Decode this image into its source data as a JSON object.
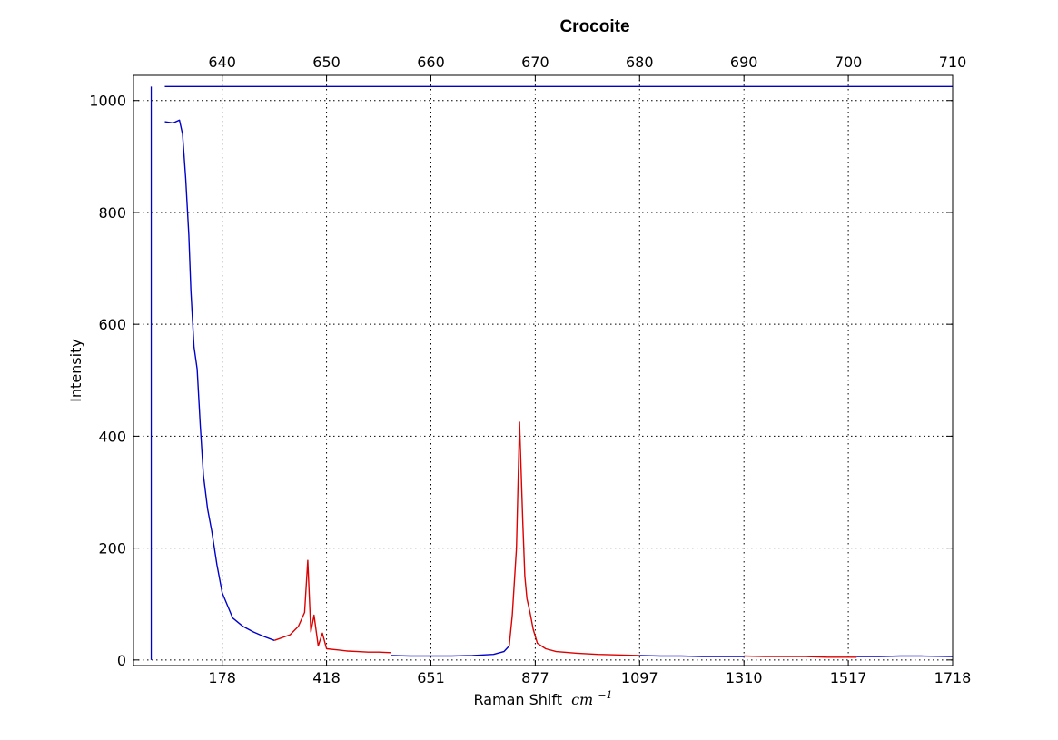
{
  "chart_data": {
    "type": "line",
    "title": "Crocoite",
    "xlabel": "Raman Shift",
    "xlabel_unit": "cm",
    "xlabel_unit_exponent": "−1",
    "ylabel": "Intensity",
    "xlim": [
      631.5,
      710
    ],
    "ylim": [
      -10,
      1045
    ],
    "grid": true,
    "top_ticks": [
      "640",
      "650",
      "660",
      "670",
      "680",
      "690",
      "700",
      "710"
    ],
    "top_tick_values": [
      640,
      650,
      660,
      670,
      680,
      690,
      700,
      710
    ],
    "bottom_ticks": [
      "178",
      "418",
      "651",
      "877",
      "1097",
      "1310",
      "1517",
      "1718"
    ],
    "bottom_tick_values": [
      640,
      650,
      660,
      670,
      680,
      690,
      700,
      710
    ],
    "y_ticks": [
      "0",
      "200",
      "400",
      "600",
      "800",
      "1000"
    ],
    "y_tick_values": [
      0,
      200,
      400,
      600,
      800,
      1000
    ],
    "colors": {
      "blue": "#0000cc",
      "red": "#dd0000"
    },
    "markers": [
      {
        "type": "vline",
        "x": 633.2,
        "y_from": 0,
        "y_to": 1025,
        "color": "#0000cc"
      },
      {
        "type": "hline",
        "y": 1025,
        "x_from": 634.5,
        "x_to": 710,
        "color": "#0000cc"
      }
    ],
    "series": [
      {
        "color": "#0000cc",
        "x": [
          634.5,
          635.3,
          635.9,
          636.2,
          636.5,
          636.8,
          637.0,
          637.3,
          637.6,
          637.9,
          638.2,
          638.6,
          639.0,
          639.5,
          640.0,
          641.0,
          642.0,
          643.0,
          644.0,
          645.0
        ],
        "y": [
          962,
          960,
          965,
          940,
          860,
          760,
          660,
          560,
          520,
          420,
          330,
          270,
          230,
          170,
          120,
          75,
          60,
          50,
          42,
          35
        ]
      },
      {
        "color": "#dd0000",
        "x": [
          645.0,
          646.5,
          647.3,
          647.9,
          648.2,
          648.5,
          648.8,
          649.2,
          649.6,
          650.0,
          651.0,
          652.0,
          653.0,
          654.0,
          655.0,
          656.2
        ],
        "y": [
          35,
          45,
          60,
          85,
          178,
          50,
          80,
          25,
          48,
          20,
          18,
          16,
          15,
          14,
          14,
          13
        ]
      },
      {
        "color": "#0000cc",
        "x": [
          656.2,
          658,
          660,
          662,
          664,
          666,
          667.0,
          667.5
        ],
        "y": [
          8,
          7,
          7,
          7,
          8,
          10,
          15,
          25
        ]
      },
      {
        "color": "#dd0000",
        "x": [
          667.5,
          667.8,
          668.2,
          668.5,
          668.8,
          669.0,
          669.2,
          669.5,
          669.8,
          670.2,
          671.0,
          672.0,
          674.0,
          676.0,
          678.0,
          680.0
        ],
        "y": [
          25,
          80,
          200,
          425,
          250,
          150,
          110,
          85,
          55,
          30,
          20,
          15,
          12,
          10,
          9,
          8
        ]
      },
      {
        "color": "#0000cc",
        "x": [
          680.0,
          682,
          684,
          686,
          688,
          690
        ],
        "y": [
          8,
          7,
          7,
          6,
          6,
          6
        ]
      },
      {
        "color": "#dd0000",
        "x": [
          690,
          692,
          694,
          696,
          698,
          700.8
        ],
        "y": [
          7,
          6,
          6,
          6,
          5,
          5
        ]
      },
      {
        "color": "#0000cc",
        "x": [
          700.8,
          703,
          705,
          707,
          710
        ],
        "y": [
          6,
          6,
          7,
          7,
          6
        ]
      }
    ]
  }
}
